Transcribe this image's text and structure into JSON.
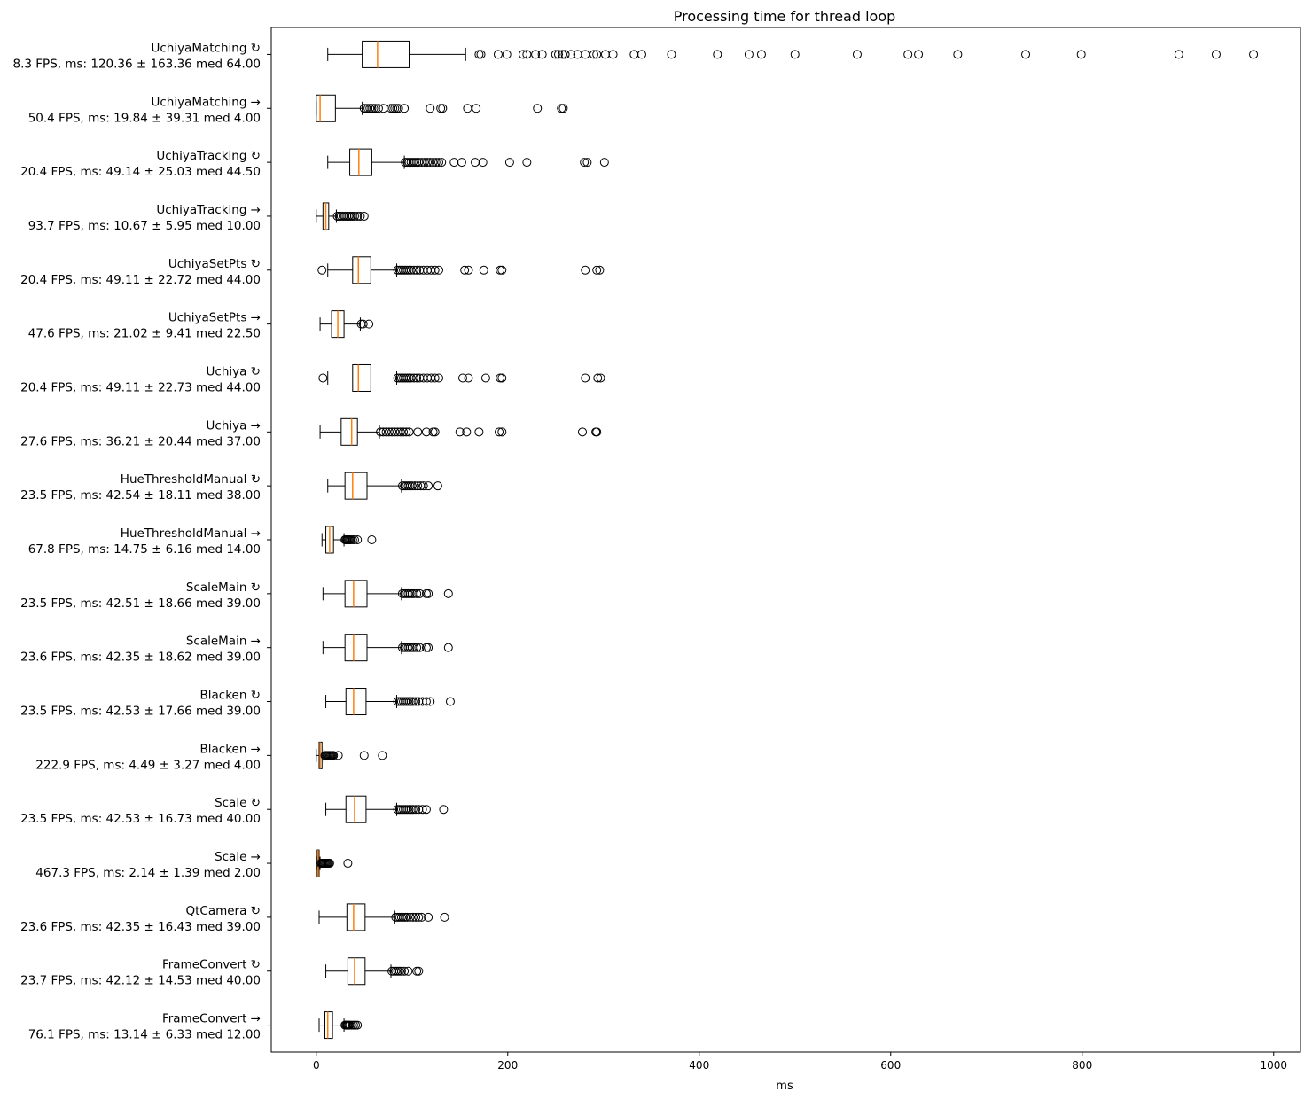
{
  "chart_data": {
    "type": "boxplot",
    "orientation": "horizontal",
    "title": "Processing time for thread loop",
    "xlabel": "ms",
    "xlim": [
      -47,
      1028
    ],
    "xticks": [
      0,
      200,
      400,
      600,
      800,
      1000
    ],
    "colors": {
      "box": "#000000",
      "median": "#ff7f0e",
      "flier": "#000000"
    },
    "series": [
      {
        "name": "UchiyaMatching ↻",
        "stats": "8.3 FPS, ms: 120.36 ± 163.36 med 64.00",
        "whislo": 12,
        "q1": 48,
        "med": 64,
        "q3": 97,
        "whishi": 156,
        "fliers": [
          170,
          172,
          190,
          199,
          216,
          220,
          229,
          236,
          250,
          253,
          257,
          260,
          266,
          273,
          281,
          290,
          293,
          302,
          310,
          332,
          340,
          371,
          419,
          452,
          465,
          500,
          565,
          618,
          629,
          670,
          741,
          799,
          901,
          940,
          979
        ]
      },
      {
        "name": "UchiyaMatching →",
        "stats": "50.4 FPS, ms: 19.84 ± 39.31 med 4.00",
        "whislo": 0,
        "q1": 0,
        "med": 4,
        "q3": 20,
        "whishi": 48,
        "fliers": [
          50,
          52,
          54,
          56,
          58,
          60,
          62,
          65,
          70,
          78,
          80,
          82,
          84,
          86,
          92,
          119,
          130,
          132,
          158,
          167,
          231,
          256,
          258
        ]
      },
      {
        "name": "UchiyaTracking ↻",
        "stats": "20.4 FPS, ms: 49.14 ± 25.03 med 44.50",
        "whislo": 12,
        "q1": 35,
        "med": 44.5,
        "q3": 58,
        "whishi": 92,
        "fliers": [
          93,
          95,
          97,
          99,
          101,
          103,
          105,
          107,
          110,
          113,
          116,
          119,
          122,
          125,
          128,
          131,
          144,
          152,
          166,
          174,
          202,
          220,
          280,
          283,
          301
        ]
      },
      {
        "name": "UchiyaTracking →",
        "stats": "93.7 FPS, ms: 10.67 ± 5.95 med 10.00",
        "whislo": 0,
        "q1": 7,
        "med": 10,
        "q3": 13,
        "whishi": 21,
        "fliers": [
          22,
          24,
          26,
          28,
          30,
          32,
          34,
          36,
          38,
          40,
          43,
          46,
          50
        ]
      },
      {
        "name": "UchiyaSetPts ↻",
        "stats": "20.4 FPS, ms: 49.11 ± 22.72 med 44.00",
        "whislo": 12,
        "q1": 38,
        "med": 44,
        "q3": 57,
        "whishi": 84,
        "fliers": [
          6,
          85,
          87,
          89,
          91,
          93,
          95,
          97,
          99,
          102,
          105,
          108,
          112,
          116,
          120,
          124,
          128,
          155,
          159,
          175,
          192,
          194,
          281,
          293,
          296
        ]
      },
      {
        "name": "UchiyaSetPts →",
        "stats": "47.6 FPS, ms: 21.02 ± 9.41 med 22.50",
        "whislo": 4,
        "q1": 16,
        "med": 22.5,
        "q3": 29,
        "whishi": 46,
        "fliers": [
          47,
          49,
          55
        ]
      },
      {
        "name": "Uchiya ↻",
        "stats": "20.4 FPS, ms: 49.11 ± 22.73 med 44.00",
        "whislo": 12,
        "q1": 38,
        "med": 44,
        "q3": 57,
        "whishi": 84,
        "fliers": [
          7,
          85,
          87,
          89,
          91,
          93,
          95,
          97,
          99,
          102,
          105,
          108,
          112,
          116,
          120,
          124,
          128,
          153,
          159,
          177,
          192,
          194,
          281,
          294,
          297
        ]
      },
      {
        "name": "Uchiya →",
        "stats": "27.6 FPS, ms: 36.21 ± 20.44 med 37.00",
        "whislo": 4,
        "q1": 26,
        "med": 37,
        "q3": 43,
        "whishi": 66,
        "fliers": [
          67,
          70,
          73,
          76,
          79,
          82,
          85,
          88,
          91,
          94,
          97,
          106,
          115,
          122,
          124,
          150,
          157,
          170,
          191,
          194,
          278,
          292,
          293
        ]
      },
      {
        "name": "HueThresholdManual ↻",
        "stats": "23.5 FPS, ms: 42.54 ± 18.11 med 38.00",
        "whislo": 12,
        "q1": 30,
        "med": 38,
        "q3": 53,
        "whishi": 89,
        "fliers": [
          90,
          92,
          94,
          96,
          98,
          100,
          103,
          106,
          109,
          112,
          117,
          127
        ]
      },
      {
        "name": "HueThresholdManual →",
        "stats": "67.8 FPS, ms: 14.75 ± 6.16 med 14.00",
        "whislo": 6,
        "q1": 10,
        "med": 14,
        "q3": 18,
        "whishi": 29,
        "fliers": [
          30,
          31,
          32,
          33,
          34,
          35,
          36,
          38,
          40,
          43,
          58
        ]
      },
      {
        "name": "ScaleMain ↻",
        "stats": "23.5 FPS, ms: 42.51 ± 18.66 med 39.00",
        "whislo": 7,
        "q1": 30,
        "med": 39,
        "q3": 53,
        "whishi": 89,
        "fliers": [
          90,
          92,
          94,
          96,
          98,
          100,
          102,
          105,
          108,
          115,
          117,
          138
        ]
      },
      {
        "name": "ScaleMain →",
        "stats": "23.6 FPS, ms: 42.35 ± 18.62 med 39.00",
        "whislo": 7,
        "q1": 30,
        "med": 39,
        "q3": 53,
        "whishi": 89,
        "fliers": [
          90,
          92,
          94,
          96,
          98,
          100,
          102,
          105,
          108,
          115,
          117,
          138
        ]
      },
      {
        "name": "Blacken ↻",
        "stats": "23.5 FPS, ms: 42.53 ± 17.66 med 39.00",
        "whislo": 10,
        "q1": 31,
        "med": 39,
        "q3": 52,
        "whishi": 84,
        "fliers": [
          85,
          87,
          89,
          91,
          93,
          95,
          97,
          99,
          101,
          104,
          107,
          111,
          115,
          119,
          140
        ]
      },
      {
        "name": "Blacken →",
        "stats": "222.9 FPS, ms: 4.49 ± 3.27 med 4.00",
        "whislo": 0,
        "q1": 3,
        "med": 4,
        "q3": 6,
        "whishi": 8,
        "fliers": [
          9,
          10,
          11,
          12,
          13,
          14,
          15,
          16,
          17,
          18,
          23,
          50,
          69
        ]
      },
      {
        "name": "Scale ↻",
        "stats": "23.5 FPS, ms: 42.53 ± 16.73 med 40.00",
        "whislo": 10,
        "q1": 31,
        "med": 40,
        "q3": 52,
        "whishi": 84,
        "fliers": [
          85,
          87,
          89,
          91,
          93,
          95,
          97,
          99,
          101,
          104,
          107,
          111,
          115,
          133
        ]
      },
      {
        "name": "Scale →",
        "stats": "467.3 FPS, ms: 2.14 ± 1.39 med 2.00",
        "whislo": 0,
        "q1": 1,
        "med": 2,
        "q3": 3,
        "whishi": 4,
        "fliers": [
          5,
          6,
          7,
          8,
          9,
          10,
          11,
          12,
          13,
          14,
          33
        ]
      },
      {
        "name": "QtCamera ↻",
        "stats": "23.6 FPS, ms: 42.35 ± 16.43 med 39.00",
        "whislo": 3,
        "q1": 32,
        "med": 39,
        "q3": 51,
        "whishi": 82,
        "fliers": [
          83,
          85,
          87,
          89,
          91,
          93,
          95,
          98,
          101,
          104,
          107,
          110,
          117,
          134
        ]
      },
      {
        "name": "FrameConvert ↻",
        "stats": "23.7 FPS, ms: 42.12 ± 14.53 med 40.00",
        "whislo": 10,
        "q1": 33,
        "med": 40,
        "q3": 51,
        "whishi": 78,
        "fliers": [
          79,
          81,
          83,
          85,
          87,
          89,
          92,
          96,
          105,
          107
        ]
      },
      {
        "name": "FrameConvert →",
        "stats": "76.1 FPS, ms: 13.14 ± 6.33 med 12.00",
        "whislo": 3,
        "q1": 9,
        "med": 12,
        "q3": 17,
        "whishi": 29,
        "fliers": [
          30,
          31,
          32,
          33,
          34,
          35,
          37,
          39,
          41,
          43
        ]
      }
    ]
  }
}
